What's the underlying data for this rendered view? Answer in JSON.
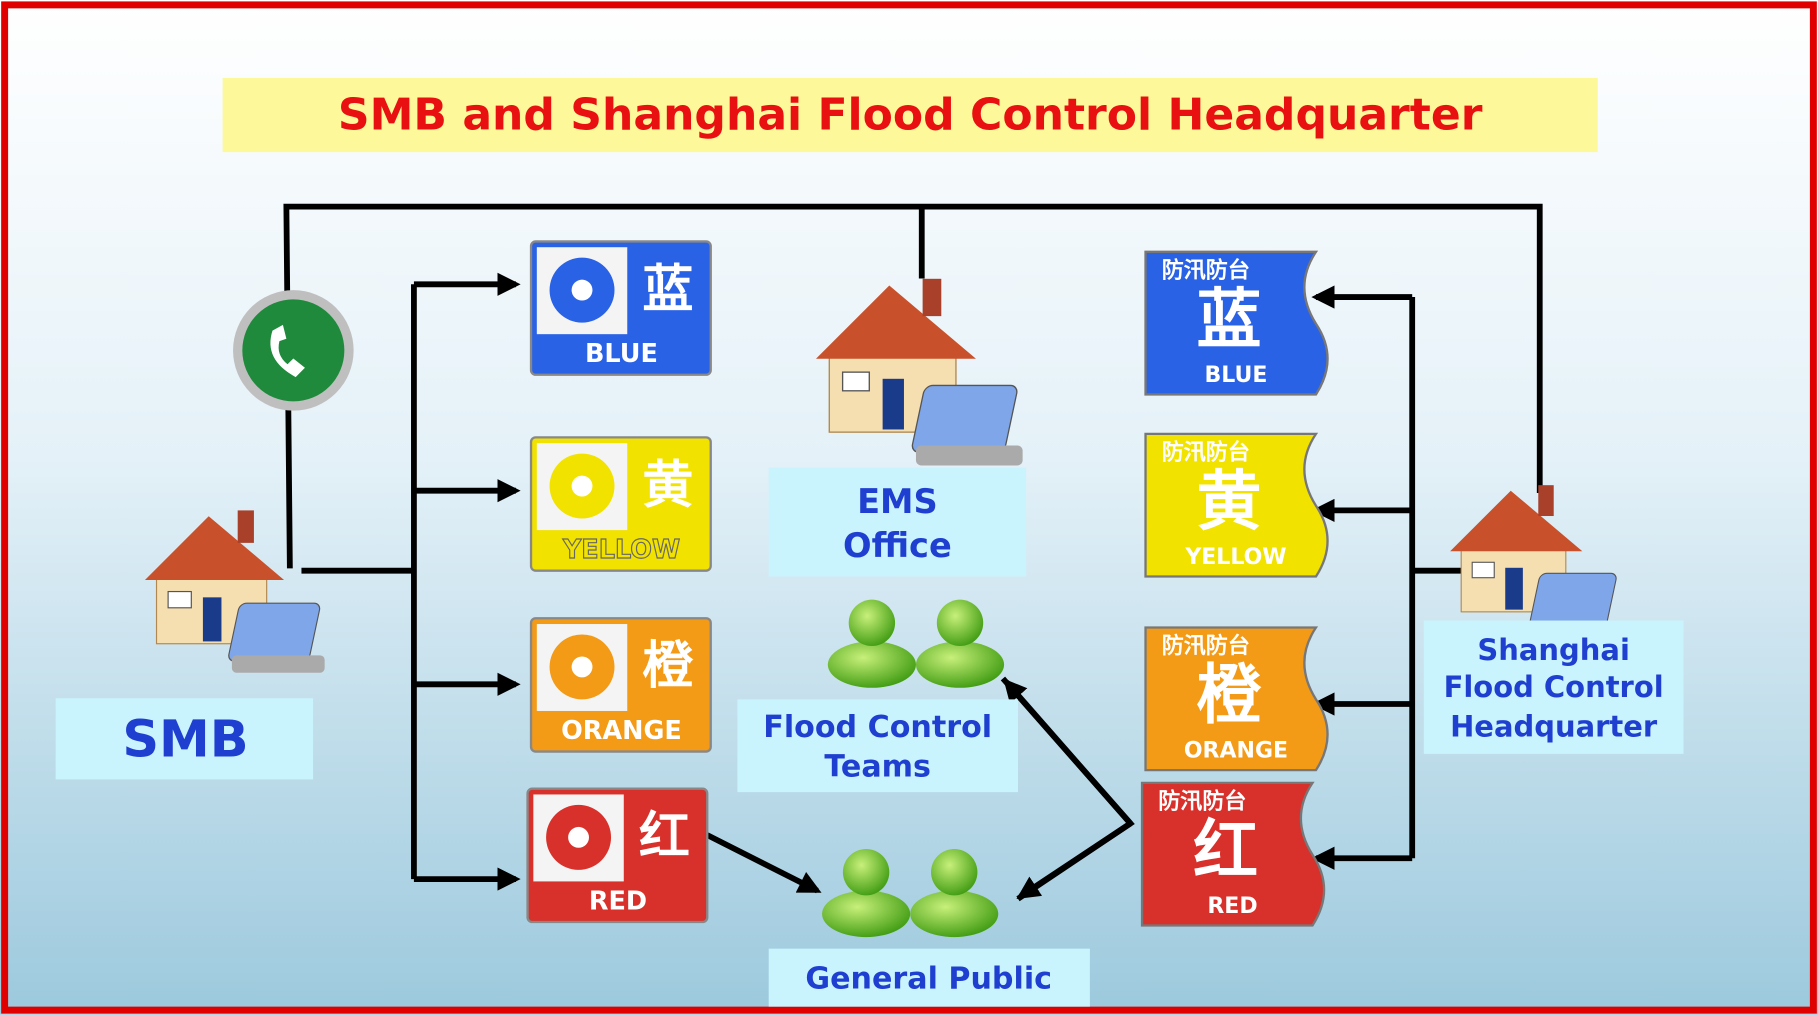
{
  "title": "SMB and Shanghai Flood Control Headquarter",
  "nodes": {
    "smb": {
      "lines": [
        "SMB"
      ]
    },
    "ems": {
      "lines": [
        "EMS",
        "Office"
      ]
    },
    "teams": {
      "lines": [
        "Flood Control",
        "Teams"
      ]
    },
    "public": {
      "lines": [
        "General Public"
      ]
    },
    "hq": {
      "lines": [
        "Shanghai",
        "Flood Control",
        "Headquarter"
      ]
    }
  },
  "typhoon_signals": [
    {
      "character": "蓝",
      "label": "BLUE"
    },
    {
      "character": "黄",
      "label": "YELLOW"
    },
    {
      "character": "橙",
      "label": "ORANGE"
    },
    {
      "character": "红",
      "label": "RED"
    }
  ],
  "flood_signals": {
    "header": "防汛防台",
    "items": [
      {
        "character": "蓝",
        "label": "BLUE"
      },
      {
        "character": "黄",
        "label": "YELLOW"
      },
      {
        "character": "橙",
        "label": "ORANGE"
      },
      {
        "character": "红",
        "label": "RED"
      }
    ]
  }
}
